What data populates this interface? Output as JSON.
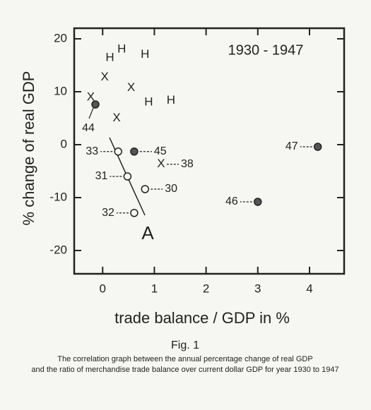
{
  "chart_data": {
    "type": "scatter",
    "title": "1930 - 1947",
    "xlabel": "trade balance / GDP in %",
    "ylabel": "% change of real GDP",
    "annotation": "A",
    "caption_title": "Fig. 1",
    "caption_lines": [
      "The correlation graph between the annual percentage change of real GDP",
      "and the ratio of merchandise trade balance over current dollar GDP for year 1930 to 1947"
    ],
    "xlim": [
      -0.55,
      4.67
    ],
    "ylim": [
      -24.4,
      22
    ],
    "xticks": [
      0,
      1,
      2,
      3,
      4
    ],
    "yticks": [
      -20,
      -10,
      0,
      10,
      20
    ],
    "color": "#222222",
    "series": [
      {
        "marker": "H",
        "x": [
          0.14,
          0.37,
          0.82,
          0.89,
          1.32
        ],
        "values": [
          16.4,
          18,
          17,
          8,
          8.3
        ]
      },
      {
        "marker": "X",
        "x": [
          -0.23,
          0.04,
          0.55,
          0.27,
          1.13
        ],
        "values": [
          8.9,
          12.7,
          10.7,
          5,
          -3.7
        ],
        "labels": [
          null,
          null,
          null,
          null,
          "38"
        ]
      },
      {
        "marker": "filled",
        "x": [
          -0.14,
          0.61,
          3.0,
          4.16
        ],
        "values": [
          7.6,
          -1.3,
          -10.8,
          -0.4
        ],
        "labels": [
          "44",
          "45",
          "46",
          "47"
        ]
      },
      {
        "marker": "open",
        "x": [
          0.3,
          0.48,
          0.82,
          0.61
        ],
        "values": [
          -1.3,
          -6,
          -8.4,
          -12.9
        ],
        "labels": [
          "33",
          "31",
          "30",
          "32"
        ]
      }
    ]
  }
}
